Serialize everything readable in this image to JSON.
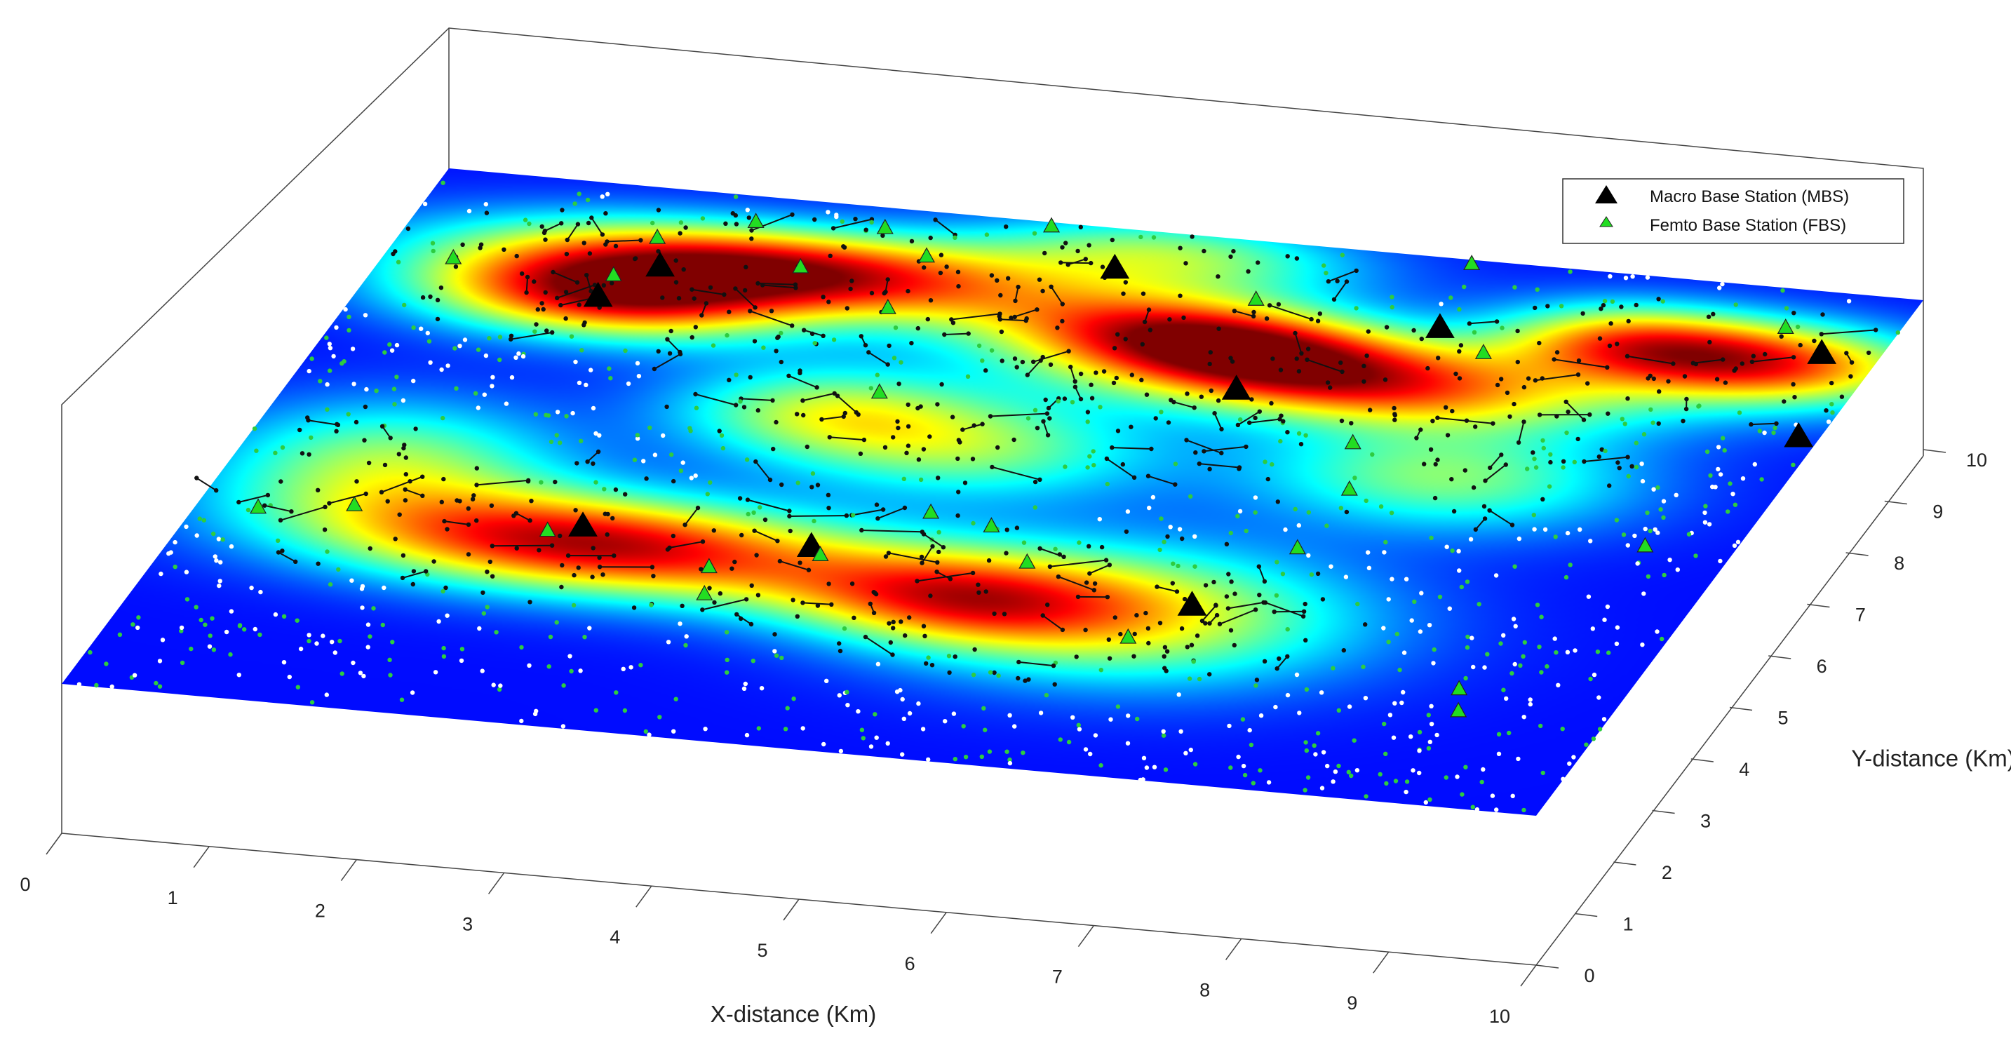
{
  "chart_data": {
    "type": "scatter",
    "title": "",
    "xlabel": "X-distance (Km)",
    "ylabel": "Y-distance (Km)",
    "xlim": [
      0,
      10
    ],
    "ylim": [
      0,
      10
    ],
    "x_ticks": [
      "0",
      "1",
      "2",
      "3",
      "4",
      "5",
      "6",
      "7",
      "8",
      "9",
      "10"
    ],
    "y_ticks": [
      "0",
      "1",
      "2",
      "3",
      "4",
      "5",
      "6",
      "7",
      "8",
      "9",
      "10"
    ],
    "grid": false,
    "legend_position": "top-right",
    "surface": {
      "description_colormap": "jet",
      "hotspots": [
        {
          "x": 2.6,
          "y": 8.7,
          "intensity": 1.0,
          "sx": 1.4,
          "sy": 0.55
        },
        {
          "x": 1.6,
          "y": 7.9,
          "intensity": 0.85,
          "sx": 0.9,
          "sy": 0.55
        },
        {
          "x": 2.7,
          "y": 3.4,
          "intensity": 1.0,
          "sx": 1.3,
          "sy": 0.65
        },
        {
          "x": 5.6,
          "y": 8.2,
          "intensity": 0.75,
          "sx": 0.9,
          "sy": 0.5
        },
        {
          "x": 6.6,
          "y": 7.6,
          "intensity": 0.9,
          "sx": 1.3,
          "sy": 0.55
        },
        {
          "x": 9.2,
          "y": 8.6,
          "intensity": 0.9,
          "sx": 0.85,
          "sy": 0.55
        },
        {
          "x": 5.2,
          "y": 3.0,
          "intensity": 0.55,
          "sx": 0.8,
          "sy": 0.6
        },
        {
          "x": 6.4,
          "y": 3.0,
          "intensity": 0.6,
          "sx": 1.1,
          "sy": 0.9
        },
        {
          "x": 4.6,
          "y": 5.8,
          "intensity": 0.45,
          "sx": 0.9,
          "sy": 0.7
        },
        {
          "x": 3.5,
          "y": 6.2,
          "intensity": 0.4,
          "sx": 0.7,
          "sy": 0.6
        },
        {
          "x": 7.8,
          "y": 6.0,
          "intensity": 0.45,
          "sx": 0.9,
          "sy": 0.7
        },
        {
          "x": 1.0,
          "y": 4.6,
          "intensity": 0.45,
          "sx": 0.8,
          "sy": 0.8
        },
        {
          "x": 5.0,
          "y": 9.6,
          "intensity": 0.45,
          "sx": 0.9,
          "sy": 0.5
        },
        {
          "x": 8.2,
          "y": 8.8,
          "intensity": 0.4,
          "sx": 0.6,
          "sy": 0.5
        }
      ]
    },
    "series": [
      {
        "name": "Macro Base Station (MBS)",
        "color": "#000000",
        "marker": "triangle",
        "points": [
          [
            1.8,
            8.6
          ],
          [
            1.55,
            7.95
          ],
          [
            4.7,
            9.3
          ],
          [
            7.05,
            8.75
          ],
          [
            6.05,
            7.3
          ],
          [
            9.6,
            8.9
          ],
          [
            9.85,
            7.35
          ],
          [
            2.55,
            3.75
          ],
          [
            4.1,
            3.75
          ],
          [
            6.8,
            3.3
          ]
        ]
      },
      {
        "name": "Femto Base Station (FBS)",
        "color": "#22dd22",
        "marker": "triangle",
        "points": [
          [
            0.45,
            8.4
          ],
          [
            1.55,
            8.35
          ],
          [
            1.65,
            9.1
          ],
          [
            2.2,
            9.55
          ],
          [
            3.05,
            9.65
          ],
          [
            3.45,
            9.2
          ],
          [
            3.45,
            8.2
          ],
          [
            4.1,
            9.95
          ],
          [
            2.7,
            8.8
          ],
          [
            5.75,
            8.95
          ],
          [
            7.45,
            8.35
          ],
          [
            7.05,
            6.5
          ],
          [
            7.25,
            5.65
          ],
          [
            6.95,
            9.95
          ],
          [
            9.25,
            9.3
          ],
          [
            0.4,
            3.55
          ],
          [
            1.0,
            3.75
          ],
          [
            2.35,
            3.6
          ],
          [
            3.55,
            3.2
          ],
          [
            3.65,
            2.7
          ],
          [
            4.2,
            3.6
          ],
          [
            4.7,
            4.55
          ],
          [
            5.15,
            4.4
          ],
          [
            5.55,
            3.8
          ],
          [
            6.55,
            2.6
          ],
          [
            7.2,
            4.5
          ],
          [
            8.9,
            2.2
          ],
          [
            9.0,
            1.8
          ],
          [
            3.8,
            6.65
          ],
          [
            9.4,
            5.1
          ]
        ]
      }
    ]
  },
  "legend": {
    "mbs_label": "Macro Base Station (MBS)",
    "fbs_label": "Femto Base Station (FBS)"
  }
}
